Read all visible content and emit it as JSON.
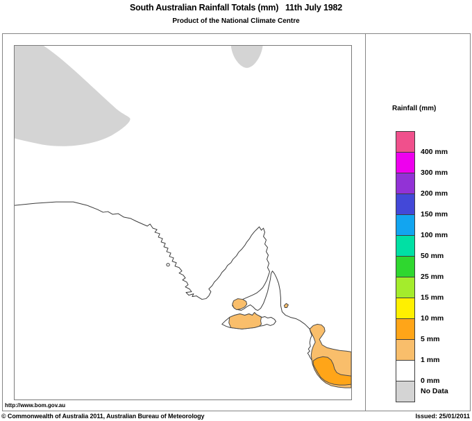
{
  "header": {
    "title": "South Australian Rainfall Totals (mm)   11th July 1982",
    "subtitle": "Product of the National Climate Centre"
  },
  "legend": {
    "title": "Rainfall (mm)",
    "entries": [
      {
        "label": "400 mm",
        "color": "#f0508c"
      },
      {
        "label": "300 mm",
        "color": "#ee00ee"
      },
      {
        "label": "200 mm",
        "color": "#9232d6"
      },
      {
        "label": "150 mm",
        "color": "#4348d8"
      },
      {
        "label": "100 mm",
        "color": "#12a5f0"
      },
      {
        "label": "50 mm",
        "color": "#00e0a4"
      },
      {
        "label": "25 mm",
        "color": "#2fd72f"
      },
      {
        "label": "15 mm",
        "color": "#a4ec2c"
      },
      {
        "label": "10 mm",
        "color": "#fff000"
      },
      {
        "label": "5 mm",
        "color": "#ffa518"
      },
      {
        "label": "1 mm",
        "color": "#f9be6b"
      },
      {
        "label": "0 mm",
        "color": "#ffffff"
      },
      {
        "label": "No Data",
        "color": "#d4d4d4"
      }
    ]
  },
  "map": {
    "colors": {
      "coastline": "#3a3a3a",
      "no_data": "#d4d4d4",
      "rain_light": "#f9be6b",
      "rain_medium": "#ffa518",
      "sea": "#ffffff"
    },
    "features": [
      {
        "name": "no-data-region-northwest",
        "value": "No Data"
      },
      {
        "name": "no-data-region-north",
        "value": "No Data"
      },
      {
        "name": "rain-region-southeast-light",
        "value": "1–5 mm"
      },
      {
        "name": "rain-region-southeast-medium",
        "value": "5–10 mm"
      },
      {
        "name": "rain-region-kangaroo-island",
        "value": "1–5 mm"
      },
      {
        "name": "rain-region-yorke-foot",
        "value": "1–5 mm"
      },
      {
        "name": "rain-region-encounter-dot",
        "value": "1–5 mm"
      }
    ]
  },
  "footer": {
    "url": "http://www.bom.gov.au",
    "copyright": "© Commonwealth of Australia 2011, Australian Bureau of Meteorology",
    "issued": "Issued: 25/01/2011"
  }
}
